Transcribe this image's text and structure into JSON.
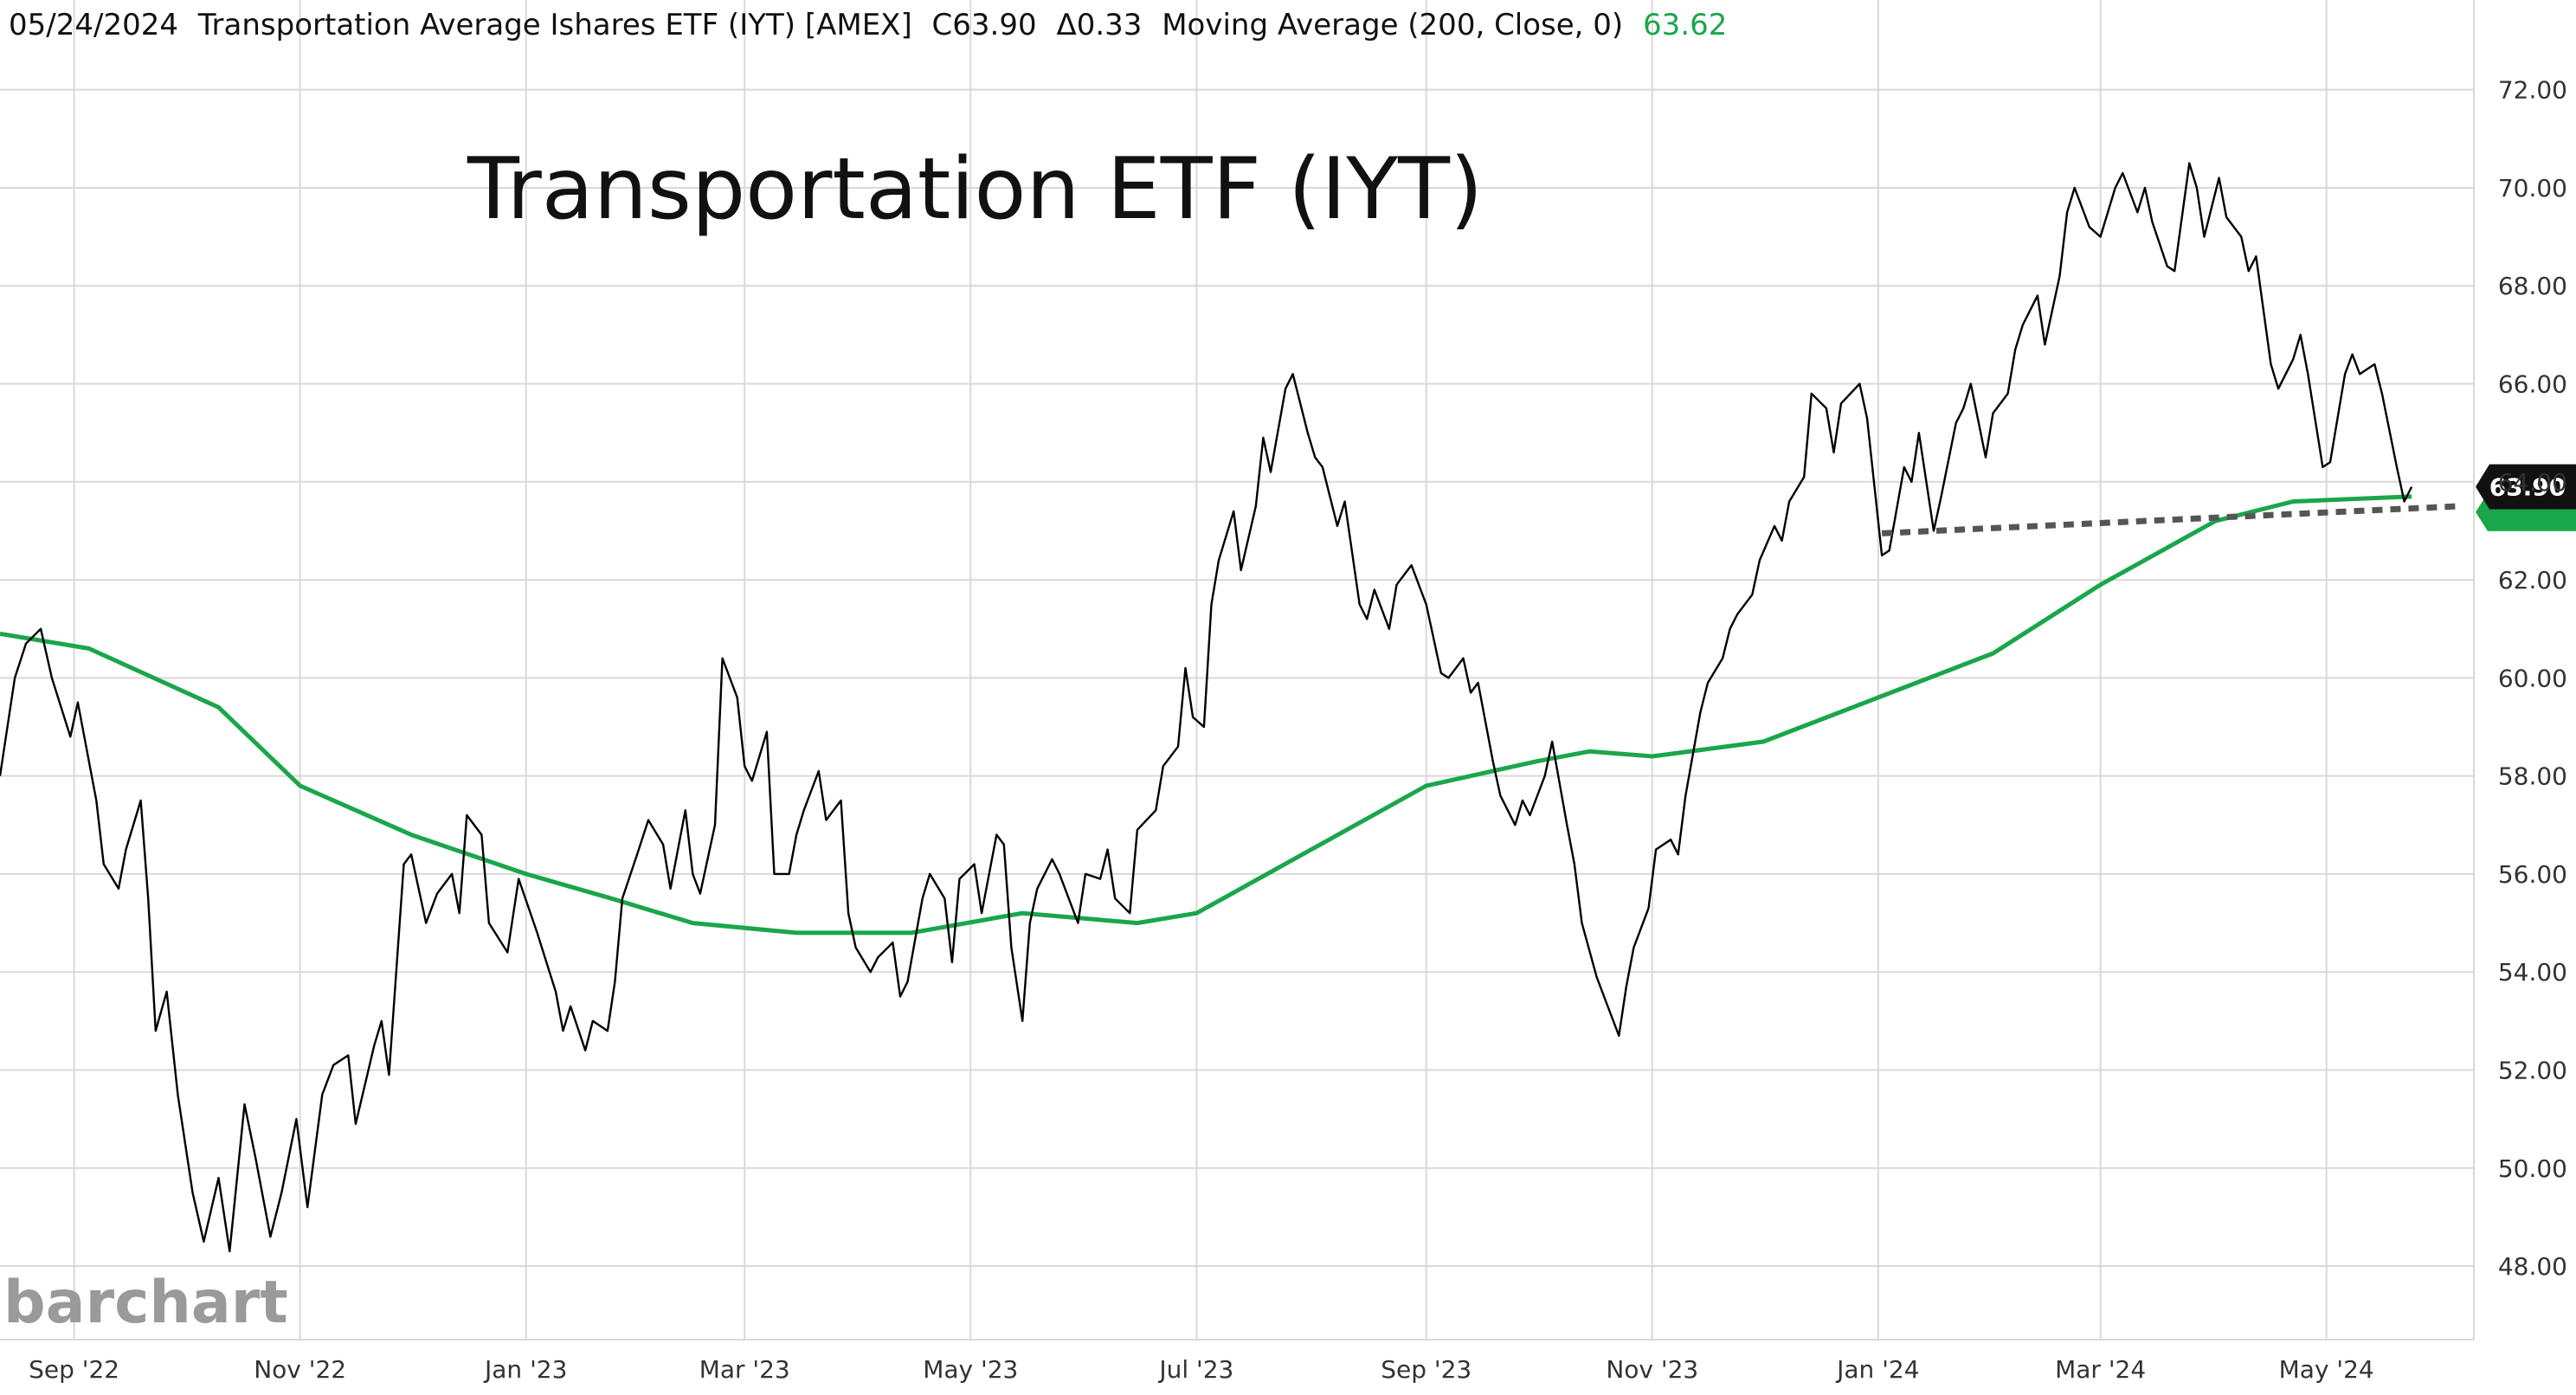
{
  "header": {
    "date": "05/24/2024",
    "instrument": "Transportation Average Ishares ETF (IYT) [AMEX]",
    "close": "C63.90",
    "change": "Δ0.33",
    "study": "Moving Average  (200, Close, 0)",
    "study_value": "63.62"
  },
  "annotation_title": "Transportation ETF (IYT)",
  "watermark": "barchart",
  "last_price_label": "63.90",
  "colors": {
    "price": "#000000",
    "moving_average": "#1aa64a",
    "support_line": "#555555",
    "grid": "#d9d9d9",
    "last_tag_bg": "#111111"
  },
  "chart_data": {
    "type": "line",
    "title": "Transportation ETF (IYT)",
    "x_axis": {
      "tick_labels": [
        "Sep '22",
        "Nov '22",
        "Jan '23",
        "Mar '23",
        "May '23",
        "Jul '23",
        "Sep '23",
        "Nov '23",
        "Jan '24",
        "Mar '24",
        "May '24"
      ],
      "tick_dates": [
        "2022-09-01",
        "2022-11-01",
        "2023-01-01",
        "2023-03-01",
        "2023-05-01",
        "2023-07-01",
        "2023-09-01",
        "2023-11-01",
        "2024-01-01",
        "2024-03-01",
        "2024-05-01"
      ],
      "range": [
        "2022-08-12",
        "2024-06-14"
      ]
    },
    "y_axis": {
      "tick_labels": [
        "48.00",
        "50.00",
        "52.00",
        "54.00",
        "56.00",
        "58.00",
        "60.00",
        "62.00",
        "64.00",
        "66.00",
        "68.00",
        "70.00",
        "72.00"
      ],
      "ylim": [
        46.5,
        73.0
      ],
      "position": "right"
    },
    "grid": true,
    "series": [
      {
        "name": "Transportation Average Ishares ETF (IYT) [AMEX]",
        "points": [
          [
            "2022-08-12",
            58.0
          ],
          [
            "2022-08-16",
            60.0
          ],
          [
            "2022-08-19",
            60.7
          ],
          [
            "2022-08-23",
            61.0
          ],
          [
            "2022-08-26",
            60.0
          ],
          [
            "2022-08-31",
            58.8
          ],
          [
            "2022-09-02",
            59.5
          ],
          [
            "2022-09-07",
            57.5
          ],
          [
            "2022-09-09",
            56.2
          ],
          [
            "2022-09-13",
            55.7
          ],
          [
            "2022-09-15",
            56.5
          ],
          [
            "2022-09-19",
            57.5
          ],
          [
            "2022-09-21",
            55.5
          ],
          [
            "2022-09-23",
            52.8
          ],
          [
            "2022-09-26",
            53.6
          ],
          [
            "2022-09-29",
            51.5
          ],
          [
            "2022-10-03",
            49.5
          ],
          [
            "2022-10-06",
            48.5
          ],
          [
            "2022-10-10",
            49.8
          ],
          [
            "2022-10-13",
            48.3
          ],
          [
            "2022-10-17",
            51.3
          ],
          [
            "2022-10-20",
            50.2
          ],
          [
            "2022-10-24",
            48.6
          ],
          [
            "2022-10-27",
            49.5
          ],
          [
            "2022-10-31",
            51.0
          ],
          [
            "2022-11-03",
            49.2
          ],
          [
            "2022-11-07",
            51.5
          ],
          [
            "2022-11-10",
            52.1
          ],
          [
            "2022-11-14",
            52.3
          ],
          [
            "2022-11-16",
            50.9
          ],
          [
            "2022-11-21",
            52.5
          ],
          [
            "2022-11-23",
            53.0
          ],
          [
            "2022-11-25",
            51.9
          ],
          [
            "2022-11-29",
            56.2
          ],
          [
            "2022-12-01",
            56.4
          ],
          [
            "2022-12-05",
            55.0
          ],
          [
            "2022-12-08",
            55.6
          ],
          [
            "2022-12-12",
            56.0
          ],
          [
            "2022-12-14",
            55.2
          ],
          [
            "2022-12-16",
            57.2
          ],
          [
            "2022-12-20",
            56.8
          ],
          [
            "2022-12-22",
            55.0
          ],
          [
            "2022-12-27",
            54.4
          ],
          [
            "2022-12-30",
            55.9
          ],
          [
            "2023-01-04",
            54.8
          ],
          [
            "2023-01-09",
            53.6
          ],
          [
            "2023-01-11",
            52.8
          ],
          [
            "2023-01-13",
            53.3
          ],
          [
            "2023-01-17",
            52.4
          ],
          [
            "2023-01-19",
            53.0
          ],
          [
            "2023-01-23",
            52.8
          ],
          [
            "2023-01-25",
            53.8
          ],
          [
            "2023-01-27",
            55.5
          ],
          [
            "2023-01-31",
            56.4
          ],
          [
            "2023-02-03",
            57.1
          ],
          [
            "2023-02-07",
            56.6
          ],
          [
            "2023-02-09",
            55.7
          ],
          [
            "2023-02-13",
            57.3
          ],
          [
            "2023-02-15",
            56.0
          ],
          [
            "2023-02-17",
            55.6
          ],
          [
            "2023-02-21",
            57.0
          ],
          [
            "2023-02-23",
            60.4
          ],
          [
            "2023-02-27",
            59.6
          ],
          [
            "2023-03-01",
            58.2
          ],
          [
            "2023-03-03",
            57.9
          ],
          [
            "2023-03-07",
            58.9
          ],
          [
            "2023-03-09",
            56.0
          ],
          [
            "2023-03-13",
            56.0
          ],
          [
            "2023-03-15",
            56.8
          ],
          [
            "2023-03-17",
            57.3
          ],
          [
            "2023-03-21",
            58.1
          ],
          [
            "2023-03-23",
            57.1
          ],
          [
            "2023-03-27",
            57.5
          ],
          [
            "2023-03-29",
            55.2
          ],
          [
            "2023-03-31",
            54.5
          ],
          [
            "2023-04-04",
            54.0
          ],
          [
            "2023-04-06",
            54.3
          ],
          [
            "2023-04-10",
            54.6
          ],
          [
            "2023-04-12",
            53.5
          ],
          [
            "2023-04-14",
            53.8
          ],
          [
            "2023-04-18",
            55.5
          ],
          [
            "2023-04-20",
            56.0
          ],
          [
            "2023-04-24",
            55.5
          ],
          [
            "2023-04-26",
            54.2
          ],
          [
            "2023-04-28",
            55.9
          ],
          [
            "2023-05-02",
            56.2
          ],
          [
            "2023-05-04",
            55.2
          ],
          [
            "2023-05-08",
            56.8
          ],
          [
            "2023-05-10",
            56.6
          ],
          [
            "2023-05-12",
            54.5
          ],
          [
            "2023-05-15",
            53.0
          ],
          [
            "2023-05-17",
            55.0
          ],
          [
            "2023-05-19",
            55.7
          ],
          [
            "2023-05-23",
            56.3
          ],
          [
            "2023-05-25",
            56.0
          ],
          [
            "2023-05-30",
            55.0
          ],
          [
            "2023-06-01",
            56.0
          ],
          [
            "2023-06-05",
            55.9
          ],
          [
            "2023-06-07",
            56.5
          ],
          [
            "2023-06-09",
            55.5
          ],
          [
            "2023-06-13",
            55.2
          ],
          [
            "2023-06-15",
            56.9
          ],
          [
            "2023-06-20",
            57.3
          ],
          [
            "2023-06-22",
            58.2
          ],
          [
            "2023-06-26",
            58.6
          ],
          [
            "2023-06-28",
            60.2
          ],
          [
            "2023-06-30",
            59.2
          ],
          [
            "2023-07-03",
            59.0
          ],
          [
            "2023-07-05",
            61.5
          ],
          [
            "2023-07-07",
            62.4
          ],
          [
            "2023-07-11",
            63.4
          ],
          [
            "2023-07-13",
            62.2
          ],
          [
            "2023-07-17",
            63.5
          ],
          [
            "2023-07-19",
            64.9
          ],
          [
            "2023-07-21",
            64.2
          ],
          [
            "2023-07-25",
            65.9
          ],
          [
            "2023-07-27",
            66.2
          ],
          [
            "2023-07-31",
            65.0
          ],
          [
            "2023-08-02",
            64.5
          ],
          [
            "2023-08-04",
            64.3
          ],
          [
            "2023-08-08",
            63.1
          ],
          [
            "2023-08-10",
            63.6
          ],
          [
            "2023-08-14",
            61.5
          ],
          [
            "2023-08-16",
            61.2
          ],
          [
            "2023-08-18",
            61.8
          ],
          [
            "2023-08-22",
            61.0
          ],
          [
            "2023-08-24",
            61.9
          ],
          [
            "2023-08-28",
            62.3
          ],
          [
            "2023-08-30",
            61.9
          ],
          [
            "2023-09-01",
            61.5
          ],
          [
            "2023-09-05",
            60.1
          ],
          [
            "2023-09-07",
            60.0
          ],
          [
            "2023-09-11",
            60.4
          ],
          [
            "2023-09-13",
            59.7
          ],
          [
            "2023-09-15",
            59.9
          ],
          [
            "2023-09-19",
            58.3
          ],
          [
            "2023-09-21",
            57.6
          ],
          [
            "2023-09-25",
            57.0
          ],
          [
            "2023-09-27",
            57.5
          ],
          [
            "2023-09-29",
            57.2
          ],
          [
            "2023-10-03",
            58.0
          ],
          [
            "2023-10-05",
            58.7
          ],
          [
            "2023-10-09",
            57.0
          ],
          [
            "2023-10-11",
            56.2
          ],
          [
            "2023-10-13",
            55.0
          ],
          [
            "2023-10-17",
            53.9
          ],
          [
            "2023-10-19",
            53.5
          ],
          [
            "2023-10-23",
            52.7
          ],
          [
            "2023-10-25",
            53.7
          ],
          [
            "2023-10-27",
            54.5
          ],
          [
            "2023-10-31",
            55.3
          ],
          [
            "2023-11-02",
            56.5
          ],
          [
            "2023-11-06",
            56.7
          ],
          [
            "2023-11-08",
            56.4
          ],
          [
            "2023-11-10",
            57.6
          ],
          [
            "2023-11-14",
            59.3
          ],
          [
            "2023-11-16",
            59.9
          ],
          [
            "2023-11-20",
            60.4
          ],
          [
            "2023-11-22",
            61.0
          ],
          [
            "2023-11-24",
            61.3
          ],
          [
            "2023-11-28",
            61.7
          ],
          [
            "2023-11-30",
            62.4
          ],
          [
            "2023-12-04",
            63.1
          ],
          [
            "2023-12-06",
            62.8
          ],
          [
            "2023-12-08",
            63.6
          ],
          [
            "2023-12-12",
            64.1
          ],
          [
            "2023-12-14",
            65.8
          ],
          [
            "2023-12-18",
            65.5
          ],
          [
            "2023-12-20",
            64.6
          ],
          [
            "2023-12-22",
            65.6
          ],
          [
            "2023-12-27",
            66.0
          ],
          [
            "2023-12-29",
            65.3
          ],
          [
            "2024-01-02",
            62.5
          ],
          [
            "2024-01-04",
            62.6
          ],
          [
            "2024-01-08",
            64.3
          ],
          [
            "2024-01-10",
            64.0
          ],
          [
            "2024-01-12",
            65.0
          ],
          [
            "2024-01-16",
            63.0
          ],
          [
            "2024-01-18",
            63.7
          ],
          [
            "2024-01-22",
            65.2
          ],
          [
            "2024-01-24",
            65.5
          ],
          [
            "2024-01-26",
            66.0
          ],
          [
            "2024-01-30",
            64.5
          ],
          [
            "2024-02-01",
            65.4
          ],
          [
            "2024-02-05",
            65.8
          ],
          [
            "2024-02-07",
            66.7
          ],
          [
            "2024-02-09",
            67.2
          ],
          [
            "2024-02-13",
            67.8
          ],
          [
            "2024-02-15",
            66.8
          ],
          [
            "2024-02-19",
            68.2
          ],
          [
            "2024-02-21",
            69.5
          ],
          [
            "2024-02-23",
            70.0
          ],
          [
            "2024-02-27",
            69.2
          ],
          [
            "2024-03-01",
            69.0
          ],
          [
            "2024-03-05",
            70.0
          ],
          [
            "2024-03-07",
            70.3
          ],
          [
            "2024-03-11",
            69.5
          ],
          [
            "2024-03-13",
            70.0
          ],
          [
            "2024-03-15",
            69.3
          ],
          [
            "2024-03-19",
            68.4
          ],
          [
            "2024-03-21",
            68.3
          ],
          [
            "2024-03-25",
            70.5
          ],
          [
            "2024-03-27",
            70.0
          ],
          [
            "2024-03-29",
            69.0
          ],
          [
            "2024-04-02",
            70.2
          ],
          [
            "2024-04-04",
            69.4
          ],
          [
            "2024-04-08",
            69.0
          ],
          [
            "2024-04-10",
            68.3
          ],
          [
            "2024-04-12",
            68.6
          ],
          [
            "2024-04-16",
            66.4
          ],
          [
            "2024-04-18",
            65.9
          ],
          [
            "2024-04-22",
            66.5
          ],
          [
            "2024-04-24",
            67.0
          ],
          [
            "2024-04-26",
            66.2
          ],
          [
            "2024-04-30",
            64.3
          ],
          [
            "2024-05-02",
            64.4
          ],
          [
            "2024-05-06",
            66.2
          ],
          [
            "2024-05-08",
            66.6
          ],
          [
            "2024-05-10",
            66.2
          ],
          [
            "2024-05-14",
            66.4
          ],
          [
            "2024-05-16",
            65.8
          ],
          [
            "2024-05-20",
            64.3
          ],
          [
            "2024-05-22",
            63.6
          ],
          [
            "2024-05-24",
            63.9
          ]
        ]
      },
      {
        "name": "Moving Average  (200, Close, 0)",
        "points": [
          [
            "2022-08-12",
            60.9
          ],
          [
            "2022-09-05",
            60.6
          ],
          [
            "2022-10-10",
            59.4
          ],
          [
            "2022-11-01",
            57.8
          ],
          [
            "2022-12-01",
            56.8
          ],
          [
            "2023-01-01",
            56.0
          ],
          [
            "2023-01-24",
            55.5
          ],
          [
            "2023-02-15",
            55.0
          ],
          [
            "2023-03-15",
            54.8
          ],
          [
            "2023-04-15",
            54.8
          ],
          [
            "2023-05-15",
            55.2
          ],
          [
            "2023-06-15",
            55.0
          ],
          [
            "2023-07-01",
            55.2
          ],
          [
            "2023-08-01",
            56.5
          ],
          [
            "2023-09-01",
            57.8
          ],
          [
            "2023-10-01",
            58.3
          ],
          [
            "2023-10-15",
            58.5
          ],
          [
            "2023-11-01",
            58.4
          ],
          [
            "2023-12-01",
            58.7
          ],
          [
            "2024-01-01",
            59.6
          ],
          [
            "2024-02-01",
            60.5
          ],
          [
            "2024-03-01",
            61.9
          ],
          [
            "2024-04-01",
            63.2
          ],
          [
            "2024-04-22",
            63.6
          ],
          [
            "2024-05-24",
            63.7
          ]
        ]
      },
      {
        "name": "",
        "style": "dotted",
        "points": [
          [
            "2024-01-02",
            62.95
          ],
          [
            "2024-06-05",
            63.5
          ]
        ]
      }
    ],
    "last_value_marker": 63.9
  }
}
